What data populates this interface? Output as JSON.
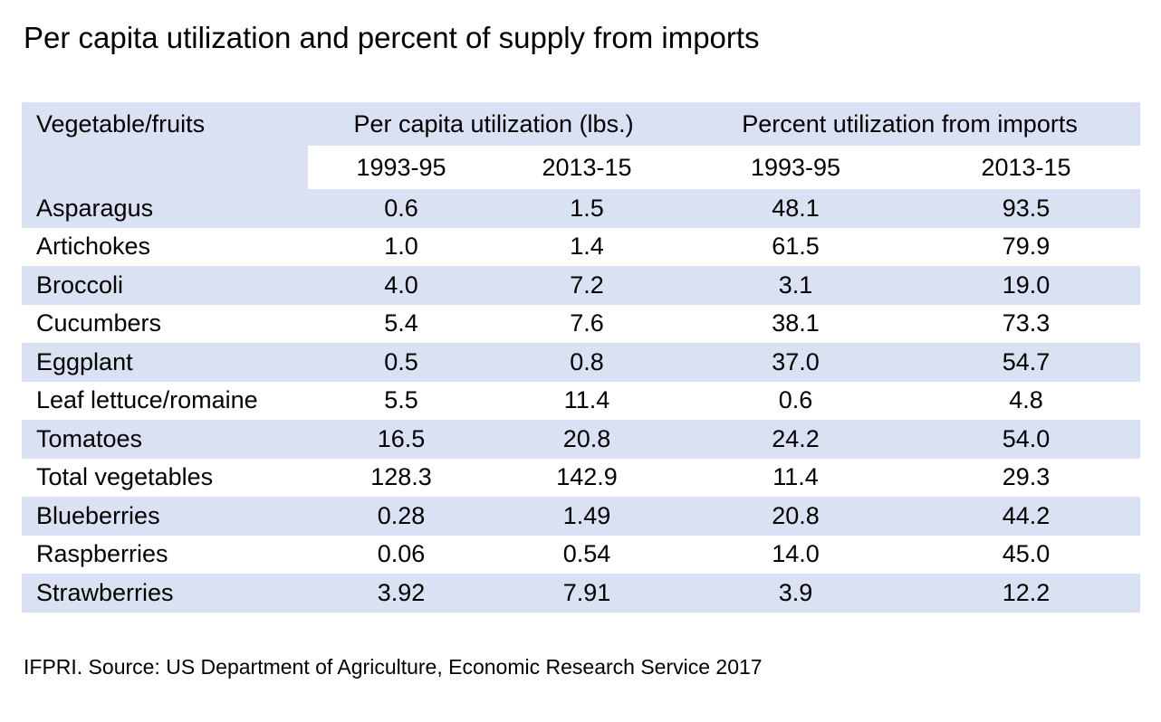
{
  "title": "Per capita utilization and percent of supply from imports",
  "source": "IFPRI. Source: US Department of Agriculture, Economic Research Service 2017",
  "colors": {
    "shade": "#d9e1f2",
    "background": "#ffffff",
    "text": "#000000"
  },
  "chart_data": {
    "type": "table",
    "header": {
      "col1": "Vegetable/fruits",
      "group1": "Per capita utilization (lbs.)",
      "group2": "Percent utilization from imports",
      "sub": [
        "1993-95",
        "2013-15",
        "1993-95",
        "2013-15"
      ]
    },
    "rows": [
      {
        "name": "Asparagus",
        "values": [
          "0.6",
          "1.5",
          "48.1",
          "93.5"
        ]
      },
      {
        "name": "Artichokes",
        "values": [
          "1.0",
          "1.4",
          "61.5",
          "79.9"
        ]
      },
      {
        "name": "Broccoli",
        "values": [
          "4.0",
          "7.2",
          "3.1",
          "19.0"
        ]
      },
      {
        "name": "Cucumbers",
        "values": [
          "5.4",
          "7.6",
          "38.1",
          "73.3"
        ]
      },
      {
        "name": "Eggplant",
        "values": [
          "0.5",
          "0.8",
          "37.0",
          "54.7"
        ]
      },
      {
        "name": "Leaf lettuce/romaine",
        "values": [
          "5.5",
          "11.4",
          "0.6",
          "4.8"
        ]
      },
      {
        "name": "Tomatoes",
        "values": [
          "16.5",
          "20.8",
          "24.2",
          "54.0"
        ]
      },
      {
        "name": "Total vegetables",
        "values": [
          "128.3",
          "142.9",
          "11.4",
          "29.3"
        ]
      },
      {
        "name": "Blueberries",
        "values": [
          "0.28",
          "1.49",
          "20.8",
          "44.2"
        ]
      },
      {
        "name": "Raspberries",
        "values": [
          "0.06",
          "0.54",
          "14.0",
          "45.0"
        ]
      },
      {
        "name": "Strawberries",
        "values": [
          "3.92",
          "7.91",
          "3.9",
          "12.2"
        ]
      }
    ]
  }
}
